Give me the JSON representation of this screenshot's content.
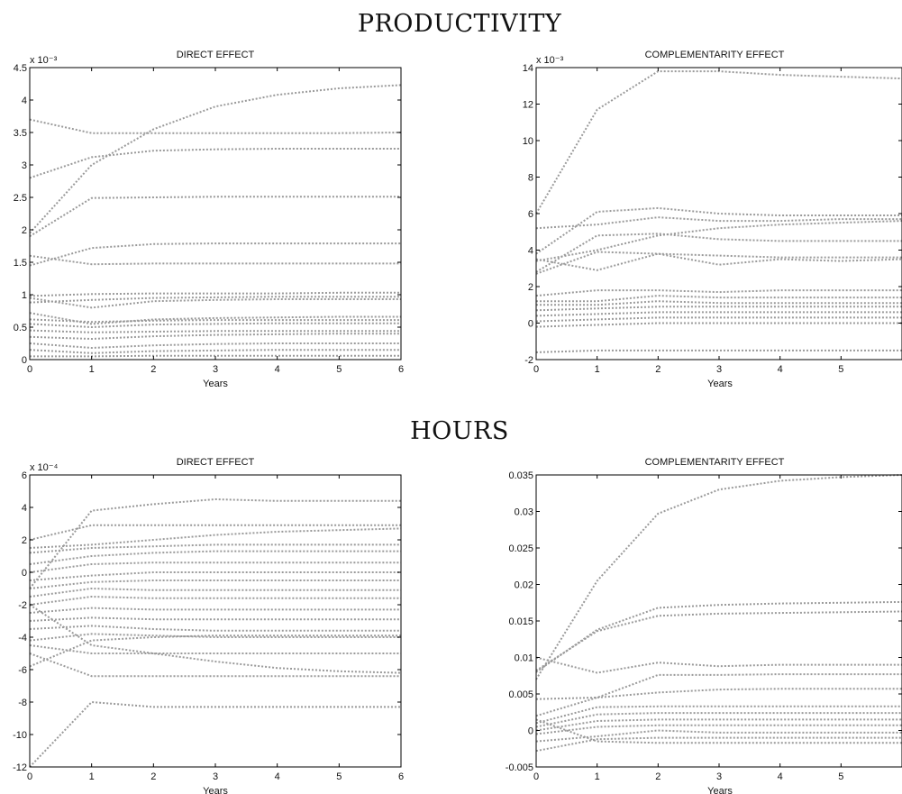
{
  "section_titles": {
    "top": "PRODUCTIVITY",
    "bottom": "HOURS"
  },
  "chart_data": [
    {
      "type": "line",
      "title": "DIRECT EFFECT",
      "xlabel": "Years",
      "ylabel": "",
      "scale_label": "x 10⁻³",
      "x": [
        0,
        1,
        2,
        3,
        4,
        5,
        6
      ],
      "xlim": [
        0,
        6
      ],
      "ylim": [
        0,
        4.5
      ],
      "xticks": [
        "0",
        "1",
        "2",
        "3",
        "4",
        "5",
        "6"
      ],
      "yticks": [
        "0",
        "0.5",
        "1",
        "1.5",
        "2",
        "2.5",
        "3",
        "3.5",
        "4",
        "4.5"
      ],
      "series": [
        {
          "values": [
            1.95,
            3.0,
            3.55,
            3.9,
            4.08,
            4.18,
            4.23
          ]
        },
        {
          "values": [
            3.7,
            3.49,
            3.49,
            3.49,
            3.49,
            3.49,
            3.5
          ]
        },
        {
          "values": [
            2.8,
            3.12,
            3.22,
            3.24,
            3.25,
            3.25,
            3.25
          ]
        },
        {
          "values": [
            1.9,
            2.49,
            2.5,
            2.51,
            2.51,
            2.51,
            2.51
          ]
        },
        {
          "values": [
            1.45,
            1.72,
            1.78,
            1.79,
            1.79,
            1.79,
            1.79
          ]
        },
        {
          "values": [
            1.6,
            1.47,
            1.48,
            1.48,
            1.48,
            1.48,
            1.48
          ]
        },
        {
          "values": [
            0.98,
            1.01,
            1.02,
            1.02,
            1.02,
            1.03,
            1.03
          ]
        },
        {
          "values": [
            0.95,
            0.8,
            0.9,
            0.92,
            0.93,
            0.93,
            0.93
          ]
        },
        {
          "values": [
            0.88,
            0.92,
            0.95,
            0.96,
            0.97,
            0.97,
            0.97
          ]
        },
        {
          "values": [
            0.72,
            0.55,
            0.62,
            0.64,
            0.65,
            0.66,
            0.66
          ]
        },
        {
          "values": [
            0.62,
            0.58,
            0.6,
            0.61,
            0.61,
            0.61,
            0.61
          ]
        },
        {
          "values": [
            0.55,
            0.5,
            0.54,
            0.55,
            0.56,
            0.56,
            0.56
          ]
        },
        {
          "values": [
            0.45,
            0.42,
            0.43,
            0.44,
            0.44,
            0.44,
            0.44
          ]
        },
        {
          "values": [
            0.35,
            0.32,
            0.36,
            0.38,
            0.39,
            0.4,
            0.4
          ]
        },
        {
          "values": [
            0.25,
            0.18,
            0.22,
            0.24,
            0.25,
            0.25,
            0.25
          ]
        },
        {
          "values": [
            0.15,
            0.1,
            0.13,
            0.14,
            0.15,
            0.15,
            0.15
          ]
        },
        {
          "values": [
            0.05,
            0.05,
            0.06,
            0.06,
            0.06,
            0.06,
            0.06
          ]
        }
      ]
    },
    {
      "type": "line",
      "title": "COMPLEMENTARITY EFFECT",
      "xlabel": "Years",
      "ylabel": "",
      "scale_label": "x 10⁻³",
      "x": [
        0,
        1,
        2,
        3,
        4,
        5,
        6
      ],
      "xlim": [
        0,
        6
      ],
      "ylim": [
        -2,
        14
      ],
      "xticks": [
        "0",
        "1",
        "2",
        "3",
        "4",
        "5"
      ],
      "yticks": [
        "-2",
        "0",
        "2",
        "4",
        "6",
        "8",
        "10",
        "12",
        "14"
      ],
      "series": [
        {
          "values": [
            6.0,
            11.7,
            13.8,
            13.8,
            13.6,
            13.5,
            13.4
          ]
        },
        {
          "values": [
            3.8,
            6.1,
            6.3,
            6.0,
            5.9,
            5.9,
            5.9
          ]
        },
        {
          "values": [
            5.2,
            5.4,
            5.8,
            5.6,
            5.6,
            5.7,
            5.7
          ]
        },
        {
          "values": [
            2.8,
            4.8,
            4.9,
            4.6,
            4.5,
            4.5,
            4.5
          ]
        },
        {
          "values": [
            3.4,
            4.0,
            4.8,
            5.2,
            5.4,
            5.5,
            5.6
          ]
        },
        {
          "values": [
            3.5,
            2.9,
            3.8,
            3.2,
            3.5,
            3.4,
            3.5
          ]
        },
        {
          "values": [
            2.7,
            3.9,
            3.8,
            3.7,
            3.6,
            3.6,
            3.6
          ]
        },
        {
          "values": [
            1.5,
            1.8,
            1.8,
            1.7,
            1.8,
            1.8,
            1.8
          ]
        },
        {
          "values": [
            1.2,
            1.2,
            1.5,
            1.4,
            1.4,
            1.4,
            1.4
          ]
        },
        {
          "values": [
            1.0,
            1.0,
            1.2,
            1.1,
            1.1,
            1.1,
            1.1
          ]
        },
        {
          "values": [
            0.7,
            0.8,
            0.9,
            0.9,
            0.9,
            0.9,
            0.9
          ]
        },
        {
          "values": [
            0.4,
            0.5,
            0.6,
            0.6,
            0.6,
            0.6,
            0.6
          ]
        },
        {
          "values": [
            0.1,
            0.2,
            0.3,
            0.3,
            0.3,
            0.3,
            0.3
          ]
        },
        {
          "values": [
            -0.2,
            -0.1,
            0.0,
            0.0,
            0.0,
            0.0,
            0.0
          ]
        },
        {
          "values": [
            -1.6,
            -1.5,
            -1.5,
            -1.5,
            -1.5,
            -1.5,
            -1.5
          ]
        }
      ]
    },
    {
      "type": "line",
      "title": "DIRECT EFFECT",
      "xlabel": "Years",
      "ylabel": "",
      "scale_label": "x 10⁻⁴",
      "x": [
        0,
        1,
        2,
        3,
        4,
        5,
        6
      ],
      "xlim": [
        0,
        6
      ],
      "ylim": [
        -12,
        6
      ],
      "xticks": [
        "0",
        "1",
        "2",
        "3",
        "4",
        "5",
        "6"
      ],
      "yticks": [
        "-12",
        "-10",
        "-8",
        "-6",
        "-4",
        "-2",
        "0",
        "2",
        "4",
        "6"
      ],
      "series": [
        {
          "values": [
            -1.0,
            3.8,
            4.2,
            4.5,
            4.4,
            4.4,
            4.4
          ]
        },
        {
          "values": [
            2.0,
            2.9,
            2.9,
            2.9,
            2.9,
            2.9,
            2.9
          ]
        },
        {
          "values": [
            1.5,
            1.7,
            2.0,
            2.3,
            2.5,
            2.6,
            2.7
          ]
        },
        {
          "values": [
            1.2,
            1.5,
            1.6,
            1.7,
            1.7,
            1.7,
            1.7
          ]
        },
        {
          "values": [
            0.5,
            1.0,
            1.2,
            1.3,
            1.3,
            1.3,
            1.3
          ]
        },
        {
          "values": [
            0.0,
            0.5,
            0.6,
            0.6,
            0.6,
            0.6,
            0.6
          ]
        },
        {
          "values": [
            -0.5,
            -0.2,
            0.0,
            0.0,
            0.0,
            0.0,
            0.0
          ]
        },
        {
          "values": [
            -1.0,
            -0.6,
            -0.5,
            -0.5,
            -0.5,
            -0.5,
            -0.5
          ]
        },
        {
          "values": [
            -1.5,
            -1.0,
            -1.1,
            -1.1,
            -1.1,
            -1.1,
            -1.1
          ]
        },
        {
          "values": [
            -2.0,
            -1.5,
            -1.6,
            -1.6,
            -1.6,
            -1.6,
            -1.6
          ]
        },
        {
          "values": [
            -2.5,
            -2.2,
            -2.3,
            -2.3,
            -2.3,
            -2.3,
            -2.3
          ]
        },
        {
          "values": [
            -3.0,
            -2.8,
            -2.9,
            -2.9,
            -2.9,
            -2.9,
            -2.9
          ]
        },
        {
          "values": [
            -3.5,
            -3.3,
            -3.5,
            -3.6,
            -3.6,
            -3.6,
            -3.6
          ]
        },
        {
          "values": [
            -4.2,
            -3.8,
            -3.9,
            -4.0,
            -4.0,
            -4.0,
            -4.0
          ]
        },
        {
          "values": [
            -4.5,
            -5.0,
            -5.0,
            -5.0,
            -5.0,
            -5.0,
            -5.0
          ]
        },
        {
          "values": [
            -2.0,
            -4.5,
            -5.0,
            -5.5,
            -5.9,
            -6.1,
            -6.2
          ]
        },
        {
          "values": [
            -5.0,
            -6.4,
            -6.4,
            -6.4,
            -6.4,
            -6.4,
            -6.4
          ]
        },
        {
          "values": [
            -5.8,
            -4.2,
            -4.0,
            -3.9,
            -3.9,
            -3.9,
            -3.9
          ]
        },
        {
          "values": [
            -12.0,
            -8.0,
            -8.3,
            -8.3,
            -8.3,
            -8.3,
            -8.3
          ]
        }
      ]
    },
    {
      "type": "line",
      "title": "COMPLEMENTARITY EFFECT",
      "xlabel": "Years",
      "ylabel": "",
      "scale_label": "",
      "x": [
        0,
        1,
        2,
        3,
        4,
        5,
        6
      ],
      "xlim": [
        0,
        6
      ],
      "ylim": [
        -0.005,
        0.035
      ],
      "xticks": [
        "0",
        "1",
        "2",
        "3",
        "4",
        "5"
      ],
      "yticks": [
        "-0.005",
        "0",
        "0.005",
        "0.01",
        "0.015",
        "0.02",
        "0.025",
        "0.03",
        "0.035"
      ],
      "series": [
        {
          "values": [
            0.007,
            0.0205,
            0.0297,
            0.033,
            0.0342,
            0.0347,
            0.035
          ]
        },
        {
          "values": [
            0.008,
            0.0138,
            0.0168,
            0.0172,
            0.0174,
            0.0175,
            0.0176
          ]
        },
        {
          "values": [
            0.0082,
            0.0136,
            0.0157,
            0.016,
            0.0161,
            0.0162,
            0.0163
          ]
        },
        {
          "values": [
            0.01,
            0.0079,
            0.0093,
            0.0088,
            0.009,
            0.009,
            0.009
          ]
        },
        {
          "values": [
            0.002,
            0.0045,
            0.0076,
            0.0076,
            0.0077,
            0.0077,
            0.0077
          ]
        },
        {
          "values": [
            0.0043,
            0.0045,
            0.0052,
            0.0056,
            0.0057,
            0.0057,
            0.0057
          ]
        },
        {
          "values": [
            0.001,
            0.0032,
            0.0033,
            0.0033,
            0.0033,
            0.0033,
            0.0033
          ]
        },
        {
          "values": [
            0.0005,
            0.0022,
            0.0024,
            0.0024,
            0.0024,
            0.0024,
            0.0024
          ]
        },
        {
          "values": [
            0.0,
            0.0013,
            0.0015,
            0.0015,
            0.0015,
            0.0015,
            0.0015
          ]
        },
        {
          "values": [
            -0.0005,
            0.0005,
            0.0007,
            0.0007,
            0.0007,
            0.0007,
            0.0007
          ]
        },
        {
          "values": [
            -0.0015,
            -0.0008,
            0.0,
            -0.0003,
            -0.0003,
            -0.0003,
            -0.0003
          ]
        },
        {
          "values": [
            -0.0028,
            -0.0012,
            -0.001,
            -0.001,
            -0.001,
            -0.001,
            -0.001
          ]
        },
        {
          "values": [
            0.0015,
            -0.0015,
            -0.0017,
            -0.0017,
            -0.0017,
            -0.0017,
            -0.0017
          ]
        }
      ]
    }
  ]
}
